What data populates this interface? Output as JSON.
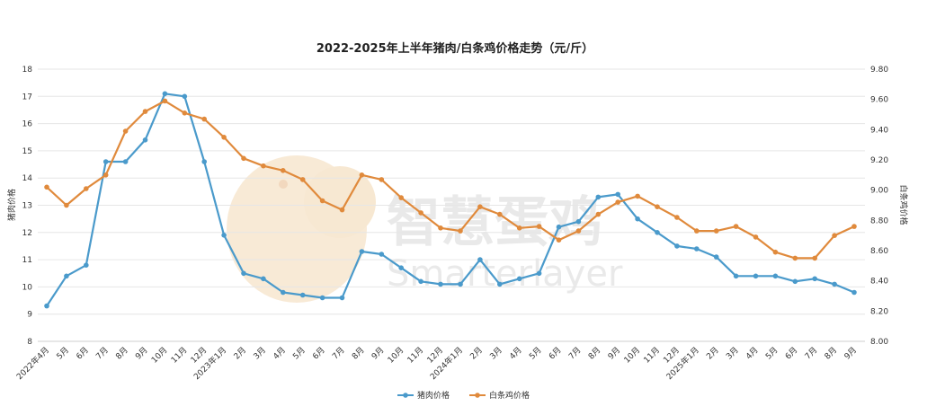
{
  "chart_data": {
    "type": "line",
    "title": "2022-2025年上半年猪肉/白条鸡价格走势（元/斤）",
    "y_left_label": "猪肉价格",
    "y_right_label": "白条鸡价格",
    "y_left_lim": [
      8,
      18
    ],
    "y_left_ticks": [
      "8",
      "9",
      "10",
      "11",
      "12",
      "13",
      "14",
      "15",
      "16",
      "17",
      "18"
    ],
    "y_right_lim": [
      8.0,
      9.8
    ],
    "y_right_ticks": [
      "8.00",
      "8.20",
      "8.40",
      "8.60",
      "8.80",
      "9.00",
      "9.20",
      "9.40",
      "9.60",
      "9.80"
    ],
    "categories": [
      "2022年4月",
      "5月",
      "6月",
      "7月",
      "8月",
      "9月",
      "10月",
      "11月",
      "12月",
      "2023年1月",
      "2月",
      "3月",
      "4月",
      "5月",
      "6月",
      "7月",
      "8月",
      "9月",
      "10月",
      "11月",
      "12月",
      "2024年1月",
      "2月",
      "3月",
      "4月",
      "5月",
      "6月",
      "7月",
      "8月",
      "9月",
      "10月",
      "11月",
      "12月",
      "2025年1月",
      "2月",
      "3月",
      "4月",
      "5月",
      "6月",
      "7月",
      "8月",
      "9月"
    ],
    "series": [
      {
        "name": "猪肉价格",
        "axis": "left",
        "color": "#4a9acb",
        "values": [
          9.3,
          10.4,
          10.8,
          14.6,
          14.6,
          15.4,
          17.1,
          17.0,
          14.6,
          11.9,
          10.5,
          10.3,
          9.8,
          9.7,
          9.6,
          9.6,
          11.3,
          11.2,
          10.7,
          10.2,
          10.1,
          10.1,
          11.0,
          10.1,
          10.3,
          10.5,
          12.2,
          12.4,
          13.3,
          13.4,
          12.5,
          12.0,
          11.5,
          11.4,
          11.1,
          10.4,
          10.4,
          10.4,
          10.2,
          10.3,
          10.1,
          9.8
        ]
      },
      {
        "name": "白条鸡价格",
        "axis": "right",
        "color": "#e08a3c",
        "values": [
          9.02,
          8.9,
          9.01,
          9.1,
          9.39,
          9.52,
          9.59,
          9.51,
          9.47,
          9.35,
          9.21,
          9.16,
          9.13,
          9.07,
          8.93,
          8.87,
          9.1,
          9.07,
          8.95,
          8.85,
          8.75,
          8.73,
          8.89,
          8.84,
          8.75,
          8.76,
          8.67,
          8.73,
          8.84,
          8.92,
          8.96,
          8.89,
          8.82,
          8.73,
          8.73,
          8.76,
          8.69,
          8.59,
          8.55,
          8.55,
          8.7,
          8.76
        ]
      }
    ],
    "grid": true,
    "legend_position": "bottom"
  },
  "watermark": {
    "text_cn": "智慧蛋鸡",
    "text_en": "Smarterlayer"
  }
}
